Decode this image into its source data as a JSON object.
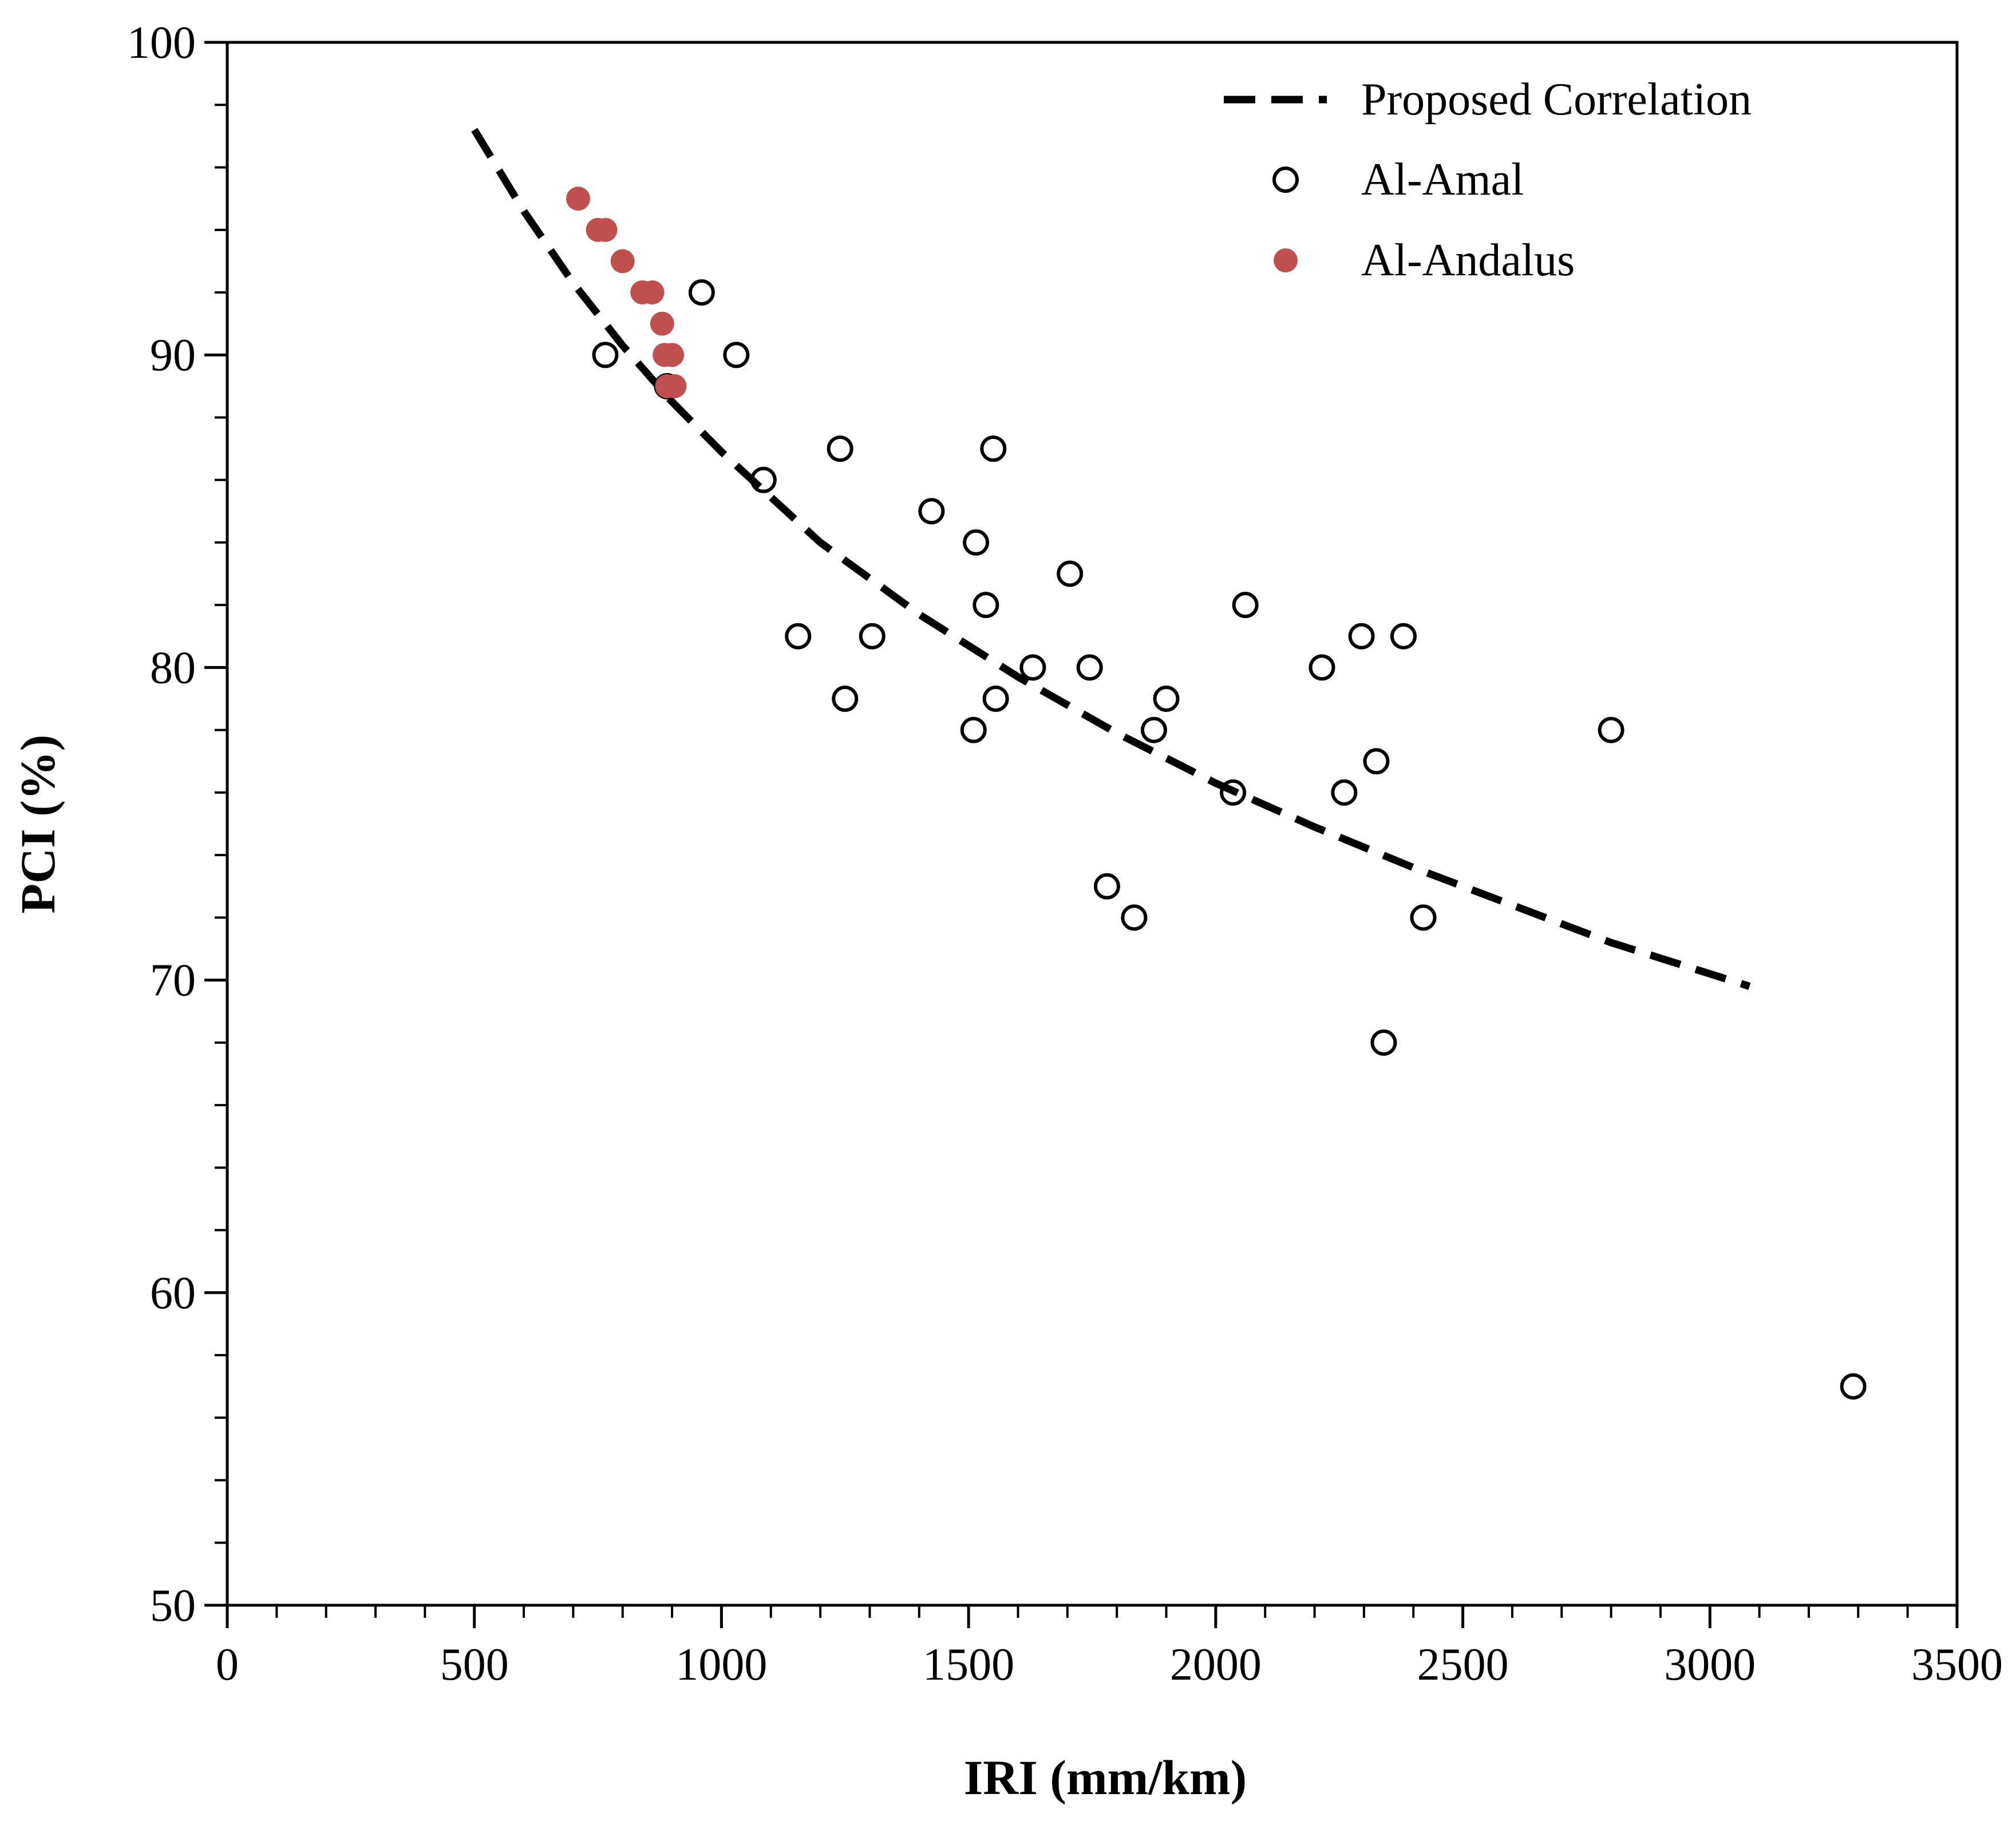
{
  "chart_data": {
    "type": "scatter",
    "title": "",
    "xlabel": "IRI (mm/km)",
    "ylabel": "PCI (%)",
    "xlim": [
      0,
      3500
    ],
    "ylim": [
      50,
      100
    ],
    "x_ticks": [
      0,
      500,
      1000,
      1500,
      2000,
      2500,
      3000,
      3500
    ],
    "x_tick_labels": [
      "0",
      "500",
      "1000",
      "1500",
      "2000",
      "2500",
      "3000",
      "3500"
    ],
    "y_ticks": [
      50,
      60,
      70,
      80,
      90,
      100
    ],
    "y_tick_labels": [
      "50",
      "60",
      "70",
      "80",
      "90",
      "100"
    ],
    "x_minor_step": 100,
    "y_minor_step": 2,
    "grid": false,
    "legend_position": "top-right",
    "colors": {
      "axis": "#000000",
      "al_andalus": "#c0504d",
      "al_amal": "#000000",
      "trend": "#000000"
    },
    "correlation": {
      "name": "Proposed Correlation",
      "style": "dashed",
      "x": [
        500,
        600,
        700,
        800,
        900,
        1000,
        1200,
        1400,
        1600,
        1800,
        2000,
        2200,
        2400,
        2600,
        2800,
        3000,
        3080
      ],
      "y": [
        97.2,
        94.6,
        92.3,
        90.3,
        88.5,
        86.9,
        84.0,
        81.7,
        79.7,
        77.9,
        76.3,
        74.9,
        73.6,
        72.4,
        71.2,
        70.2,
        69.8
      ]
    },
    "series": [
      {
        "name": "Al-Amal",
        "marker": "open-circle",
        "points": [
          [
            765,
            90
          ],
          [
            890,
            89
          ],
          [
            960,
            92
          ],
          [
            1030,
            90
          ],
          [
            1085,
            86
          ],
          [
            1155,
            81
          ],
          [
            1240,
            87
          ],
          [
            1250,
            79
          ],
          [
            1305,
            81
          ],
          [
            1425,
            85
          ],
          [
            1510,
            78
          ],
          [
            1515,
            84
          ],
          [
            1535,
            82
          ],
          [
            1550,
            87
          ],
          [
            1555,
            79
          ],
          [
            1630,
            80
          ],
          [
            1705,
            83
          ],
          [
            1745,
            80
          ],
          [
            1780,
            73
          ],
          [
            1835,
            72
          ],
          [
            1875,
            78
          ],
          [
            1900,
            79
          ],
          [
            2035,
            76
          ],
          [
            2060,
            82
          ],
          [
            2215,
            80
          ],
          [
            2260,
            76
          ],
          [
            2295,
            81
          ],
          [
            2325,
            77
          ],
          [
            2340,
            68
          ],
          [
            2380,
            81
          ],
          [
            2420,
            72
          ],
          [
            2800,
            78
          ],
          [
            3290,
            57
          ]
        ]
      },
      {
        "name": "Al-Andalus",
        "marker": "filled-circle",
        "points": [
          [
            710,
            95
          ],
          [
            750,
            94
          ],
          [
            765,
            94
          ],
          [
            800,
            93
          ],
          [
            840,
            92
          ],
          [
            860,
            92
          ],
          [
            880,
            91
          ],
          [
            885,
            90
          ],
          [
            900,
            90
          ],
          [
            890,
            89
          ],
          [
            905,
            89
          ]
        ]
      }
    ]
  }
}
